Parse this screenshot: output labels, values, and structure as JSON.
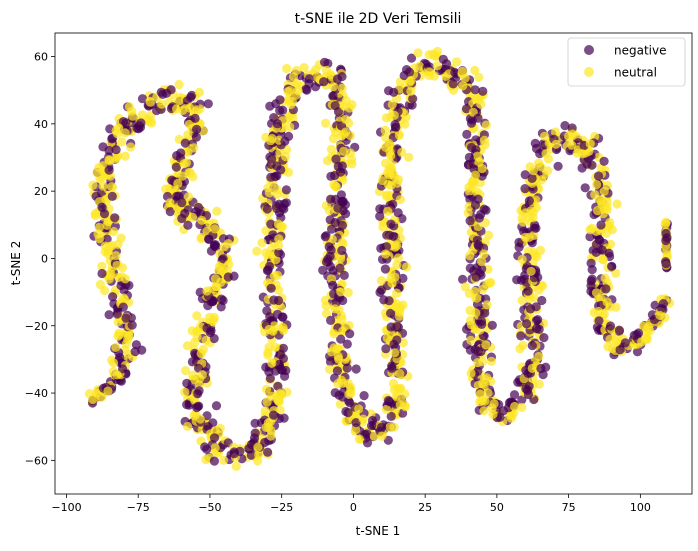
{
  "chart_data": {
    "type": "scatter",
    "title": "t-SNE ile 2D Veri Temsili",
    "xlabel": "t-SNE 1",
    "ylabel": "t-SNE 2",
    "xlim": [
      -104,
      118
    ],
    "ylim": [
      -70,
      67
    ],
    "xticks": [
      -100,
      -75,
      -50,
      -25,
      0,
      25,
      50,
      75,
      100
    ],
    "yticks": [
      -60,
      -40,
      -20,
      0,
      20,
      40,
      60
    ],
    "xtick_labels": [
      "−100",
      "−75",
      "−50",
      "−25",
      "0",
      "25",
      "50",
      "75",
      "100"
    ],
    "ytick_labels": [
      "−60",
      "−40",
      "−20",
      "0",
      "20",
      "40",
      "60"
    ],
    "grid": false,
    "legend_position": "top-right",
    "series": [
      {
        "name": "negative",
        "color": "#440154",
        "opacity": 0.7
      },
      {
        "name": "neutral",
        "color": "#fde725",
        "opacity": 0.7
      }
    ],
    "curve_path": [
      [
        -92,
        -42
      ],
      [
        -87,
        -40
      ],
      [
        -82,
        -35
      ],
      [
        -79,
        -28
      ],
      [
        -80,
        -18
      ],
      [
        -82,
        -8
      ],
      [
        -85,
        2
      ],
      [
        -87,
        12
      ],
      [
        -86,
        24
      ],
      [
        -83,
        34
      ],
      [
        -77,
        42
      ],
      [
        -68,
        47
      ],
      [
        -58,
        47
      ],
      [
        -54,
        42
      ],
      [
        -56,
        34
      ],
      [
        -60,
        26
      ],
      [
        -64,
        19
      ],
      [
        -62,
        13
      ],
      [
        -55,
        14
      ],
      [
        -50,
        10
      ],
      [
        -47,
        4
      ],
      [
        -45,
        -3
      ],
      [
        -48,
        -10
      ],
      [
        -52,
        -20
      ],
      [
        -54,
        -32
      ],
      [
        -55,
        -44
      ],
      [
        -51,
        -54
      ],
      [
        -42,
        -59
      ],
      [
        -33,
        -57
      ],
      [
        -28,
        -48
      ],
      [
        -27,
        -36
      ],
      [
        -27,
        -24
      ],
      [
        -28,
        -10
      ],
      [
        -28,
        4
      ],
      [
        -27,
        18
      ],
      [
        -27,
        34
      ],
      [
        -24,
        48
      ],
      [
        -17,
        55
      ],
      [
        -8,
        55
      ],
      [
        -4,
        46
      ],
      [
        -4,
        34
      ],
      [
        -5,
        20
      ],
      [
        -6,
        6
      ],
      [
        -6,
        -8
      ],
      [
        -5,
        -22
      ],
      [
        -4,
        -36
      ],
      [
        0,
        -48
      ],
      [
        8,
        -52
      ],
      [
        15,
        -44
      ],
      [
        15,
        -30
      ],
      [
        14,
        -16
      ],
      [
        13,
        -2
      ],
      [
        13,
        12
      ],
      [
        13,
        26
      ],
      [
        14,
        40
      ],
      [
        18,
        52
      ],
      [
        26,
        58
      ],
      [
        36,
        56
      ],
      [
        43,
        46
      ],
      [
        43,
        32
      ],
      [
        43,
        18
      ],
      [
        43,
        4
      ],
      [
        44,
        -10
      ],
      [
        44,
        -24
      ],
      [
        44,
        -36
      ],
      [
        48,
        -45
      ],
      [
        56,
        -45
      ],
      [
        62,
        -36
      ],
      [
        62,
        -22
      ],
      [
        61,
        -8
      ],
      [
        61,
        6
      ],
      [
        62,
        20
      ],
      [
        65,
        30
      ],
      [
        72,
        36
      ],
      [
        80,
        34
      ],
      [
        85,
        26
      ],
      [
        87,
        14
      ],
      [
        87,
        0
      ],
      [
        86,
        -12
      ],
      [
        88,
        -22
      ],
      [
        93,
        -26
      ],
      [
        100,
        -24
      ],
      [
        106,
        -18
      ],
      [
        108,
        -12
      ]
    ],
    "extra_segments": [
      {
        "from": [
          109,
          -3
        ],
        "to": [
          109,
          12
        ]
      }
    ],
    "points_per_segment": 26,
    "spread": 2.6,
    "negative_share": 0.45
  }
}
